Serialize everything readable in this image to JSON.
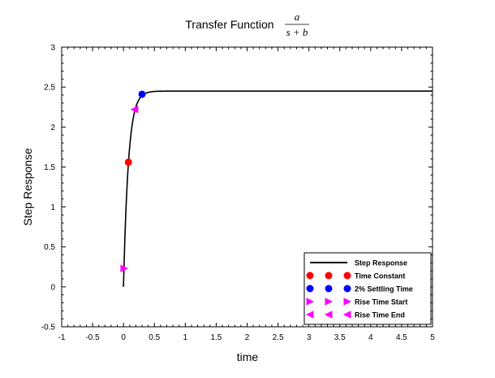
{
  "chart_data": {
    "type": "line",
    "title": "Transfer Function",
    "title_formula": {
      "numerator": "a",
      "denominator": "s + b"
    },
    "xlabel": "time",
    "ylabel": "Step Response",
    "xlim": [
      -1,
      5
    ],
    "ylim": [
      -0.5,
      3
    ],
    "x_ticks": [
      "-1",
      "-0.5",
      "0",
      "0.5",
      "1",
      "1.5",
      "2",
      "2.5",
      "3",
      "3.5",
      "4",
      "4.5",
      "5"
    ],
    "y_ticks": [
      "-0.5",
      "0",
      "0.5",
      "1",
      "1.5",
      "2",
      "2.5",
      "3"
    ],
    "grid": false,
    "legend_position": "bottom-right",
    "series": [
      {
        "name": "Step Response",
        "color": "#000000",
        "style": "line",
        "final_value": 2.45,
        "time_constant": 0.08,
        "t_start": 0,
        "t_end": 5
      },
      {
        "name": "Time Constant",
        "color": "#ff0000",
        "marker": "circle",
        "points": [
          [
            0.08,
            1.56
          ]
        ]
      },
      {
        "name": "2% Settling Time",
        "color": "#0000ff",
        "marker": "circle",
        "points": [
          [
            0.3,
            2.41
          ]
        ]
      },
      {
        "name": "Rise Time Start",
        "color": "#ff00ff",
        "marker": "triangle-right",
        "points": [
          [
            0.01,
            0.23
          ]
        ]
      },
      {
        "name": "Rise Time End",
        "color": "#ff00ff",
        "marker": "triangle-left",
        "points": [
          [
            0.18,
            2.22
          ]
        ]
      }
    ]
  }
}
